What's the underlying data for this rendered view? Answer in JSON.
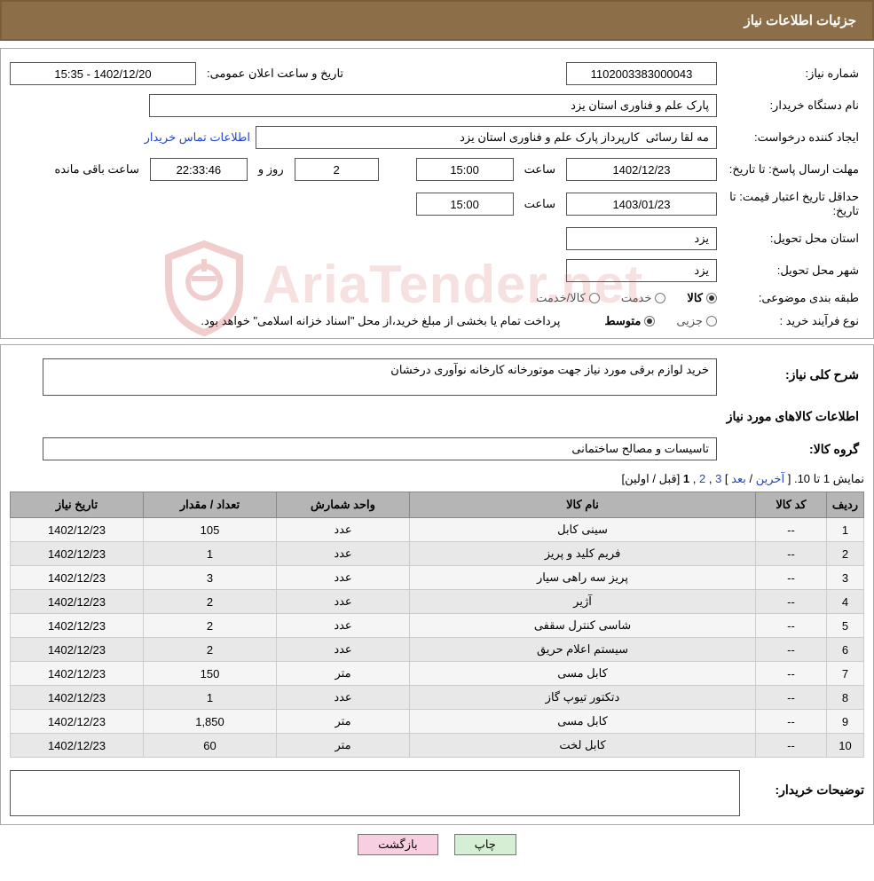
{
  "title_bar": "جزئیات اطلاعات نیاز",
  "labels": {
    "need_no": "شماره نیاز:",
    "buyer_org": "نام دستگاه خریدار:",
    "requester": "ایجاد کننده درخواست:",
    "deadline": "مهلت ارسال پاسخ:",
    "price_validity": "حداقل تاریخ اعتبار قیمت:",
    "delivery_province": "استان محل تحویل:",
    "delivery_city": "شهر محل تحویل:",
    "category": "طبقه بندی موضوعی:",
    "purchase_type": "نوع فرآیند خرید :",
    "announce_dt": "تاریخ و ساعت اعلان عمومی:",
    "until_date": "تا تاریخ:",
    "time_word": "ساعت",
    "days_and": "روز و",
    "remaining": "ساعت باقی مانده",
    "contact_link": "اطلاعات تماس خریدار",
    "need_desc": "شرح کلی نیاز:",
    "goods_info": "اطلاعات کالاهای مورد نیاز",
    "goods_group": "گروه کالا:",
    "buyer_notes": "توضیحات خریدار:"
  },
  "fields": {
    "need_no": "1102003383000043",
    "announce_dt": "1402/12/20 - 15:35",
    "buyer_org": "پارک علم و فناوری استان یزد",
    "requester": "مه لقا رسائی  کارپرداز پارک علم و فناوری استان یزد",
    "deadline_date": "1402/12/23",
    "deadline_time": "15:00",
    "deadline_days": "2",
    "deadline_countdown": "22:33:46",
    "validity_date": "1403/01/23",
    "validity_time": "15:00",
    "province": "یزد",
    "city": "یزد",
    "need_desc_text": "خرید لوازم برقی مورد نیاز جهت موتورخانه کارخانه نوآوری درخشان",
    "goods_group": "تاسیسات و مصالح ساختمانی",
    "buyer_notes_text": ""
  },
  "category_opts": {
    "goods": "کالا",
    "service": "خدمت",
    "both": "کالا/خدمت"
  },
  "purchase_type_opts": {
    "partial": "جزیی",
    "medium": "متوسط"
  },
  "purchase_note": "پرداخت تمام یا بخشی از مبلغ خرید،از محل \"اسناد خزانه اسلامی\" خواهد بود.",
  "pager": {
    "prefix": "نمایش 1 تا 10.",
    "last": "آخرین",
    "next": "بعد",
    "p3": "3",
    "p2": "2",
    "p1": "1",
    "first_prev": "[قبل / اولین]"
  },
  "table": {
    "headers": {
      "row": "ردیف",
      "code": "کد کالا",
      "name": "نام کالا",
      "unit": "واحد شمارش",
      "qty": "تعداد / مقدار",
      "date": "تاریخ نیاز"
    },
    "rows": [
      {
        "n": "1",
        "code": "--",
        "name": "سینی کابل",
        "unit": "عدد",
        "qty": "105",
        "date": "1402/12/23"
      },
      {
        "n": "2",
        "code": "--",
        "name": "فریم کلید و پریز",
        "unit": "عدد",
        "qty": "1",
        "date": "1402/12/23"
      },
      {
        "n": "3",
        "code": "--",
        "name": "پریز سه راهی سیار",
        "unit": "عدد",
        "qty": "3",
        "date": "1402/12/23"
      },
      {
        "n": "4",
        "code": "--",
        "name": "آژیر",
        "unit": "عدد",
        "qty": "2",
        "date": "1402/12/23"
      },
      {
        "n": "5",
        "code": "--",
        "name": "شاسی کنترل سقفی",
        "unit": "عدد",
        "qty": "2",
        "date": "1402/12/23"
      },
      {
        "n": "6",
        "code": "--",
        "name": "سیستم اعلام حریق",
        "unit": "عدد",
        "qty": "2",
        "date": "1402/12/23"
      },
      {
        "n": "7",
        "code": "--",
        "name": "کابل مسی",
        "unit": "متر",
        "qty": "150",
        "date": "1402/12/23"
      },
      {
        "n": "8",
        "code": "--",
        "name": "دتکتور تیوپ گاز",
        "unit": "عدد",
        "qty": "1",
        "date": "1402/12/23"
      },
      {
        "n": "9",
        "code": "--",
        "name": "کابل مسی",
        "unit": "متر",
        "qty": "1,850",
        "date": "1402/12/23"
      },
      {
        "n": "10",
        "code": "--",
        "name": "کابل لخت",
        "unit": "متر",
        "qty": "60",
        "date": "1402/12/23"
      }
    ]
  },
  "buttons": {
    "print": "چاپ",
    "back": "بازگشت"
  },
  "watermark_text": "AriaTender.net",
  "colors": {
    "titlebar_bg": "#8c6f49",
    "titlebar_border": "#7a5f3d",
    "panel_border": "#aaaaaa",
    "input_border": "#555555",
    "th_bg": "#b5b5b5",
    "row_odd": "#f5f5f5",
    "row_even": "#e8e8e8",
    "link": "#2244cc",
    "btn_print": "#d4efd4",
    "btn_back": "#f7cfe0",
    "watermark_color": "rgba(200,60,60,0.16)"
  }
}
